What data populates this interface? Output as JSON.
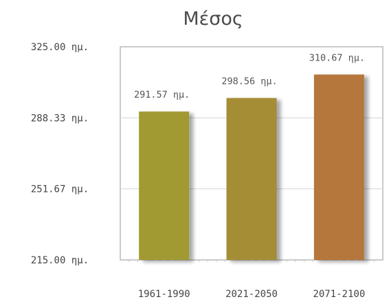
{
  "chart_data": {
    "type": "bar",
    "title": "Μέσος",
    "categories": [
      "1961-1990",
      "2021-2050",
      "2071-2100"
    ],
    "values": [
      291.57,
      298.56,
      310.67
    ],
    "value_labels": [
      "291.57 ημ.",
      "298.56 ημ.",
      "310.67 ημ."
    ],
    "bar_colors": [
      "#a19a33",
      "#a58d35",
      "#b5773a"
    ],
    "ylim": [
      215.0,
      325.0
    ],
    "yticks": [
      215.0,
      251.67,
      288.33,
      325.0
    ],
    "ytick_labels": [
      "215.00 ημ.",
      "251.67 ημ.",
      "288.33 ημ.",
      "325.00 ημ."
    ],
    "grid": true,
    "legend": "none"
  }
}
